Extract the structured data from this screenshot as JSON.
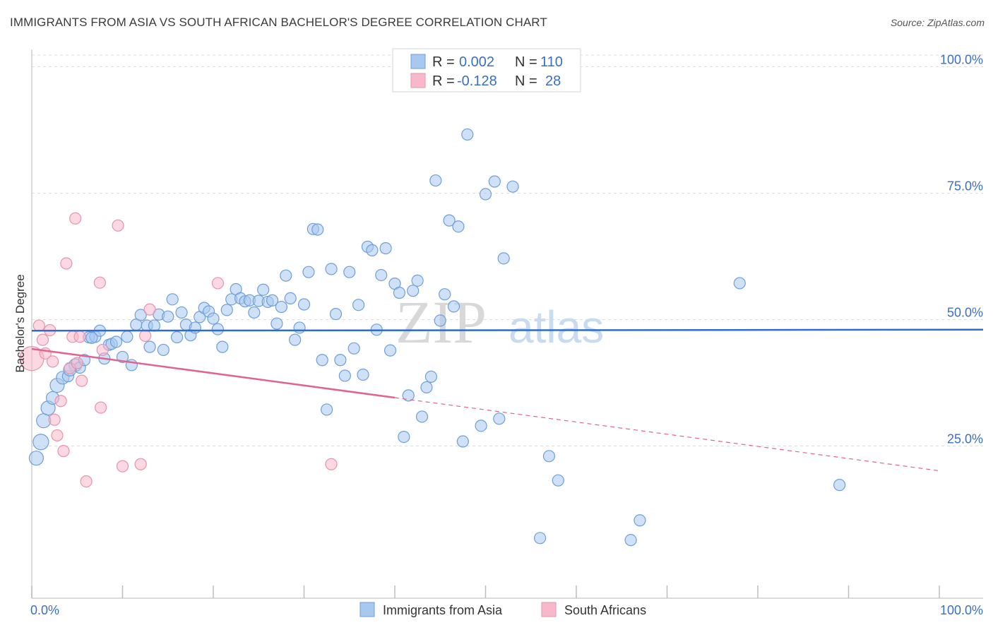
{
  "header": {
    "title": "IMMIGRANTS FROM ASIA VS SOUTH AFRICAN BACHELOR'S DEGREE CORRELATION CHART",
    "source": "Source: ZipAtlas.com"
  },
  "colors": {
    "blue_fill": "#a8c8f0",
    "blue_stroke": "#6f9ed9",
    "blue_line": "#2f6ccc",
    "pink_fill": "#f7b8cb",
    "pink_stroke": "#e893ae",
    "pink_line": "#e0648e",
    "tick_text": "#3a6fc4",
    "grid": "#dcdcdc"
  },
  "chart_data": {
    "type": "scatter",
    "title": "IMMIGRANTS FROM ASIA VS SOUTH AFRICAN BACHELOR'S DEGREE CORRELATION CHART",
    "ylabel": "Bachelor's Degree",
    "xlabel": "",
    "xlim": [
      0,
      100
    ],
    "ylim": [
      0,
      100
    ],
    "x_tick_labels": [
      "0.0%",
      "100.0%"
    ],
    "y_tick_labels": [
      {
        "value": 100,
        "label": "100.0%"
      },
      {
        "value": 75,
        "label": "75.0%"
      },
      {
        "value": 50,
        "label": "50.0%"
      },
      {
        "value": 25,
        "label": "25.0%"
      }
    ],
    "grid": true,
    "watermark": "ZIPatlas",
    "legend_top": [
      {
        "r_label": "R =",
        "r_value": "0.002",
        "n_label": "N =",
        "n_value": "110"
      },
      {
        "r_label": "R =",
        "r_value": "-0.128",
        "n_label": "N =",
        "n_value": "28"
      }
    ],
    "series": [
      {
        "name": "Immigrants from Asia",
        "color": "#a8c8f0",
        "trend": {
          "x0": 0,
          "y0": 47.8,
          "x1": 100,
          "y1": 48.0,
          "dashed_from": null
        },
        "points": [
          [
            0.5,
            22.6
          ],
          [
            1,
            25.8
          ],
          [
            1.3,
            30
          ],
          [
            1.8,
            32.5
          ],
          [
            2.3,
            34.5
          ],
          [
            2.8,
            37
          ],
          [
            3.4,
            38.5
          ],
          [
            4,
            38.8
          ],
          [
            4.8,
            41
          ],
          [
            5.3,
            40.5
          ],
          [
            5.8,
            42
          ],
          [
            6.3,
            46.5
          ],
          [
            7,
            46.6
          ],
          [
            7.5,
            47.8
          ],
          [
            8,
            42.3
          ],
          [
            8.5,
            45
          ],
          [
            8.8,
            45.2
          ],
          [
            9.3,
            45.6
          ],
          [
            10,
            42.6
          ],
          [
            10.5,
            46.6
          ],
          [
            11,
            41
          ],
          [
            11.5,
            49
          ],
          [
            12,
            50.9
          ],
          [
            12.7,
            48.8
          ],
          [
            13,
            44.6
          ],
          [
            13.5,
            48.8
          ],
          [
            14,
            51
          ],
          [
            14.5,
            44
          ],
          [
            15,
            50.6
          ],
          [
            15.5,
            54
          ],
          [
            16,
            46.5
          ],
          [
            16.5,
            51.4
          ],
          [
            17,
            49
          ],
          [
            17.5,
            46.9
          ],
          [
            18,
            48.4
          ],
          [
            18.5,
            50.5
          ],
          [
            19,
            52.3
          ],
          [
            19.5,
            51.6
          ],
          [
            20,
            50.2
          ],
          [
            20.5,
            48.1
          ],
          [
            21,
            44.6
          ],
          [
            21.5,
            51.9
          ],
          [
            22,
            54
          ],
          [
            22.5,
            56
          ],
          [
            23,
            54.2
          ],
          [
            23.5,
            53.6
          ],
          [
            24,
            53.8
          ],
          [
            24.5,
            51.4
          ],
          [
            25,
            53.7
          ],
          [
            25.5,
            55.9
          ],
          [
            26,
            53.5
          ],
          [
            26.5,
            53.8
          ],
          [
            27,
            49.2
          ],
          [
            27.5,
            52.5
          ],
          [
            28,
            58.7
          ],
          [
            28.5,
            54.2
          ],
          [
            29,
            46
          ],
          [
            29.5,
            48.4
          ],
          [
            30,
            53
          ],
          [
            30.5,
            59.4
          ],
          [
            31,
            67.9
          ],
          [
            31.5,
            67.8
          ],
          [
            32,
            42
          ],
          [
            32.5,
            32.2
          ],
          [
            33,
            60
          ],
          [
            33.5,
            51.1
          ],
          [
            34,
            42
          ],
          [
            34.5,
            38.9
          ],
          [
            35,
            59.4
          ],
          [
            35.5,
            44.3
          ],
          [
            36,
            52.9
          ],
          [
            36.5,
            39.1
          ],
          [
            37,
            64.4
          ],
          [
            37.5,
            63.7
          ],
          [
            38,
            48
          ],
          [
            38.5,
            58.8
          ],
          [
            39,
            64.1
          ],
          [
            39.5,
            43.9
          ],
          [
            40,
            57.1
          ],
          [
            40.5,
            55.3
          ],
          [
            41,
            26.8
          ],
          [
            41.5,
            35
          ],
          [
            42,
            55.7
          ],
          [
            42.5,
            57.7
          ],
          [
            43,
            30.8
          ],
          [
            43.5,
            36.6
          ],
          [
            44,
            38.7
          ],
          [
            44.5,
            77.5
          ],
          [
            45,
            49.8
          ],
          [
            45.5,
            55
          ],
          [
            46,
            69.6
          ],
          [
            46.5,
            52.6
          ],
          [
            47,
            68.4
          ],
          [
            47.5,
            25.9
          ],
          [
            48,
            86.6
          ],
          [
            49.5,
            29
          ],
          [
            50,
            74.8
          ],
          [
            51,
            77.3
          ],
          [
            51.5,
            30.4
          ],
          [
            52,
            62.1
          ],
          [
            53,
            76.3
          ],
          [
            56,
            6.8
          ],
          [
            57,
            23
          ],
          [
            58,
            18.2
          ],
          [
            66,
            6.4
          ],
          [
            67,
            10.3
          ],
          [
            78,
            57.2
          ],
          [
            89,
            17.3
          ],
          [
            4.2,
            40.1
          ],
          [
            6.6,
            46.4
          ]
        ],
        "sizes": [
          20,
          22,
          20,
          20,
          18,
          20,
          18,
          16,
          18,
          16,
          16,
          16,
          16,
          16,
          16,
          16,
          16,
          16,
          16,
          16,
          16,
          16,
          16,
          16,
          16,
          16,
          16,
          16,
          16,
          16,
          16,
          16,
          16,
          16,
          16,
          16,
          16,
          16,
          16,
          16,
          16,
          16,
          16,
          16,
          16,
          16,
          16,
          16,
          16,
          16,
          16,
          16,
          16,
          16,
          16,
          16,
          16,
          16,
          16,
          16,
          16,
          16,
          16,
          16,
          16,
          16,
          16,
          16,
          16,
          16,
          16,
          16,
          16,
          16,
          16,
          16,
          16,
          16,
          16,
          16,
          16,
          16,
          16,
          16,
          16,
          16,
          16,
          16,
          16,
          16,
          16,
          16,
          16,
          16,
          16,
          16,
          16,
          16,
          16,
          16,
          16,
          16,
          16,
          16,
          16,
          16,
          16,
          16,
          18,
          16
        ]
      },
      {
        "name": "South Africans",
        "color": "#f7b8cb",
        "trend": {
          "x0": 0,
          "y0": 44.2,
          "x1": 100,
          "y1": 20.1,
          "dashed_from": 40
        },
        "points": [
          [
            0,
            42.3
          ],
          [
            0.8,
            48.8
          ],
          [
            1.2,
            46
          ],
          [
            1.5,
            43.3
          ],
          [
            2,
            47.9
          ],
          [
            2.3,
            41.7
          ],
          [
            2.5,
            30.2
          ],
          [
            2.8,
            27.1
          ],
          [
            3.2,
            33.9
          ],
          [
            3.5,
            24
          ],
          [
            3.8,
            61.1
          ],
          [
            4.2,
            40.4
          ],
          [
            4.5,
            46.6
          ],
          [
            4.8,
            70
          ],
          [
            5,
            41.4
          ],
          [
            5.3,
            46.6
          ],
          [
            5.5,
            37.9
          ],
          [
            6,
            18
          ],
          [
            7.5,
            57.3
          ],
          [
            7.6,
            32.6
          ],
          [
            7.8,
            44
          ],
          [
            9.5,
            68.6
          ],
          [
            10,
            21
          ],
          [
            12,
            21.4
          ],
          [
            12.5,
            46.8
          ],
          [
            13,
            52
          ],
          [
            20.5,
            57.2
          ],
          [
            33,
            21.4
          ]
        ],
        "sizes": [
          34,
          16,
          16,
          16,
          16,
          16,
          16,
          16,
          16,
          16,
          16,
          16,
          16,
          16,
          16,
          16,
          16,
          16,
          16,
          16,
          16,
          16,
          16,
          16,
          16,
          16,
          16,
          16
        ]
      }
    ]
  },
  "bottom_legend": {
    "items": [
      {
        "label": "Immigrants from Asia"
      },
      {
        "label": "South Africans"
      }
    ]
  }
}
